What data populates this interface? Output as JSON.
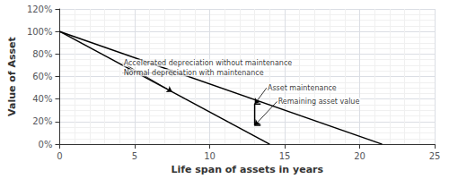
{
  "chart_data": {
    "type": "line",
    "xlabel": "Life span of assets in years",
    "ylabel": "Value of Asset",
    "xlim": [
      0,
      25
    ],
    "ylim": [
      0,
      1.2
    ],
    "xticks": [
      0,
      5,
      10,
      15,
      20,
      25
    ],
    "yticks": [
      {
        "value": 0,
        "label": "0%"
      },
      {
        "value": 0.2,
        "label": "20%"
      },
      {
        "value": 0.4,
        "label": "40%"
      },
      {
        "value": 0.6,
        "label": "60%"
      },
      {
        "value": 0.8,
        "label": "80%"
      },
      {
        "value": 1.0,
        "label": "100%"
      },
      {
        "value": 1.2,
        "label": "120%"
      }
    ],
    "grid": true,
    "series": [
      {
        "x": [
          0,
          14.0
        ],
        "values": [
          1.0,
          0.0
        ],
        "color": "#000000"
      },
      {
        "x": [
          0,
          21.5
        ],
        "values": [
          1.0,
          0.0
        ],
        "color": "#000000"
      },
      {
        "x": [
          13.4,
          13.0,
          13.0,
          13.4
        ],
        "values": [
          0.357,
          0.357,
          0.167,
          0.167
        ],
        "color": "#000000"
      }
    ],
    "annotations": [
      {
        "text": "Accelerated depreciation without maintenance",
        "xy": [
          7.5,
          0.465
        ],
        "xytext": [
          4.2,
          0.72
        ]
      },
      {
        "text": "Normal depreciation with maintenance",
        "xy": [
          7.8,
          0.635
        ],
        "xytext": [
          4.2,
          0.635
        ]
      },
      {
        "text": "Asset maintenance",
        "xy": [
          13.0,
          0.357
        ],
        "xytext": [
          13.8,
          0.5
        ]
      },
      {
        "text": "Remaining asset value",
        "xy": [
          13.0,
          0.167
        ],
        "xytext": [
          14.5,
          0.38
        ]
      }
    ]
  }
}
